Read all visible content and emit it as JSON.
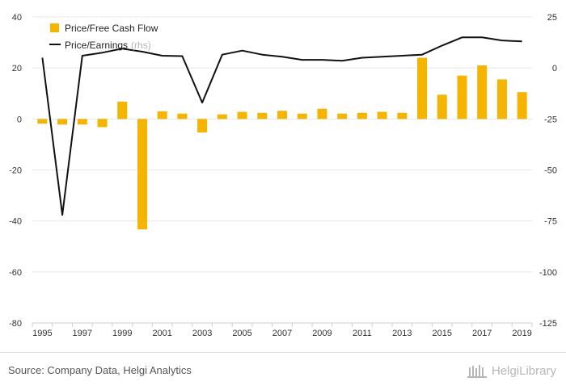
{
  "chart_data": {
    "type": "bar+line",
    "categories": [
      "1995",
      "1996",
      "1997",
      "1998",
      "1999",
      "2000",
      "2001",
      "2002",
      "2003",
      "2004",
      "2005",
      "2006",
      "2007",
      "2008",
      "2009",
      "2010",
      "2011",
      "2012",
      "2013",
      "2014",
      "2015",
      "2016",
      "2017",
      "2018",
      "2019"
    ],
    "x_tick_labels": [
      "1995",
      "1997",
      "1999",
      "2001",
      "2003",
      "2005",
      "2007",
      "2009",
      "2011",
      "2013",
      "2015",
      "2017",
      "2019"
    ],
    "series": [
      {
        "name": "Price/Free Cash Flow",
        "type": "bar",
        "axis": "left",
        "color": "#f5b400",
        "values": [
          -1.8,
          -2.2,
          -2.2,
          -3.2,
          6.8,
          -43.3,
          3.0,
          2.1,
          -5.3,
          1.8,
          2.8,
          2.4,
          3.2,
          2.1,
          4.0,
          2.1,
          2.4,
          2.8,
          2.4,
          24.0,
          9.5,
          17.0,
          21.0,
          15.5,
          10.5
        ]
      },
      {
        "name": "Price/Earnings",
        "type": "line",
        "axis": "right",
        "color": "#111111",
        "values": [
          5.0,
          -72.0,
          6.0,
          7.5,
          9.5,
          8.0,
          6.0,
          5.8,
          -17.0,
          6.5,
          8.5,
          6.5,
          5.5,
          4.0,
          4.0,
          3.5,
          5.0,
          5.5,
          6.0,
          6.5,
          11.0,
          15.0,
          15.0,
          13.5,
          13.0
        ]
      }
    ],
    "left_axis": {
      "ylim": [
        -80,
        40
      ],
      "ticks": [
        40,
        20,
        0,
        -20,
        -40,
        -60,
        -80
      ]
    },
    "right_axis": {
      "ylim": [
        -125,
        25
      ],
      "ticks": [
        25,
        0,
        -25,
        -50,
        -75,
        -100,
        -125
      ]
    },
    "legend": {
      "position": "top-left",
      "items": [
        {
          "label": "Price/Free Cash Flow",
          "suffix": ""
        },
        {
          "label": "Price/Earnings",
          "suffix": "(rhs)"
        }
      ]
    },
    "grid": true
  },
  "footer": {
    "source": "Source: Company Data, Helgi Analytics",
    "brand": "HelgiLibrary"
  }
}
